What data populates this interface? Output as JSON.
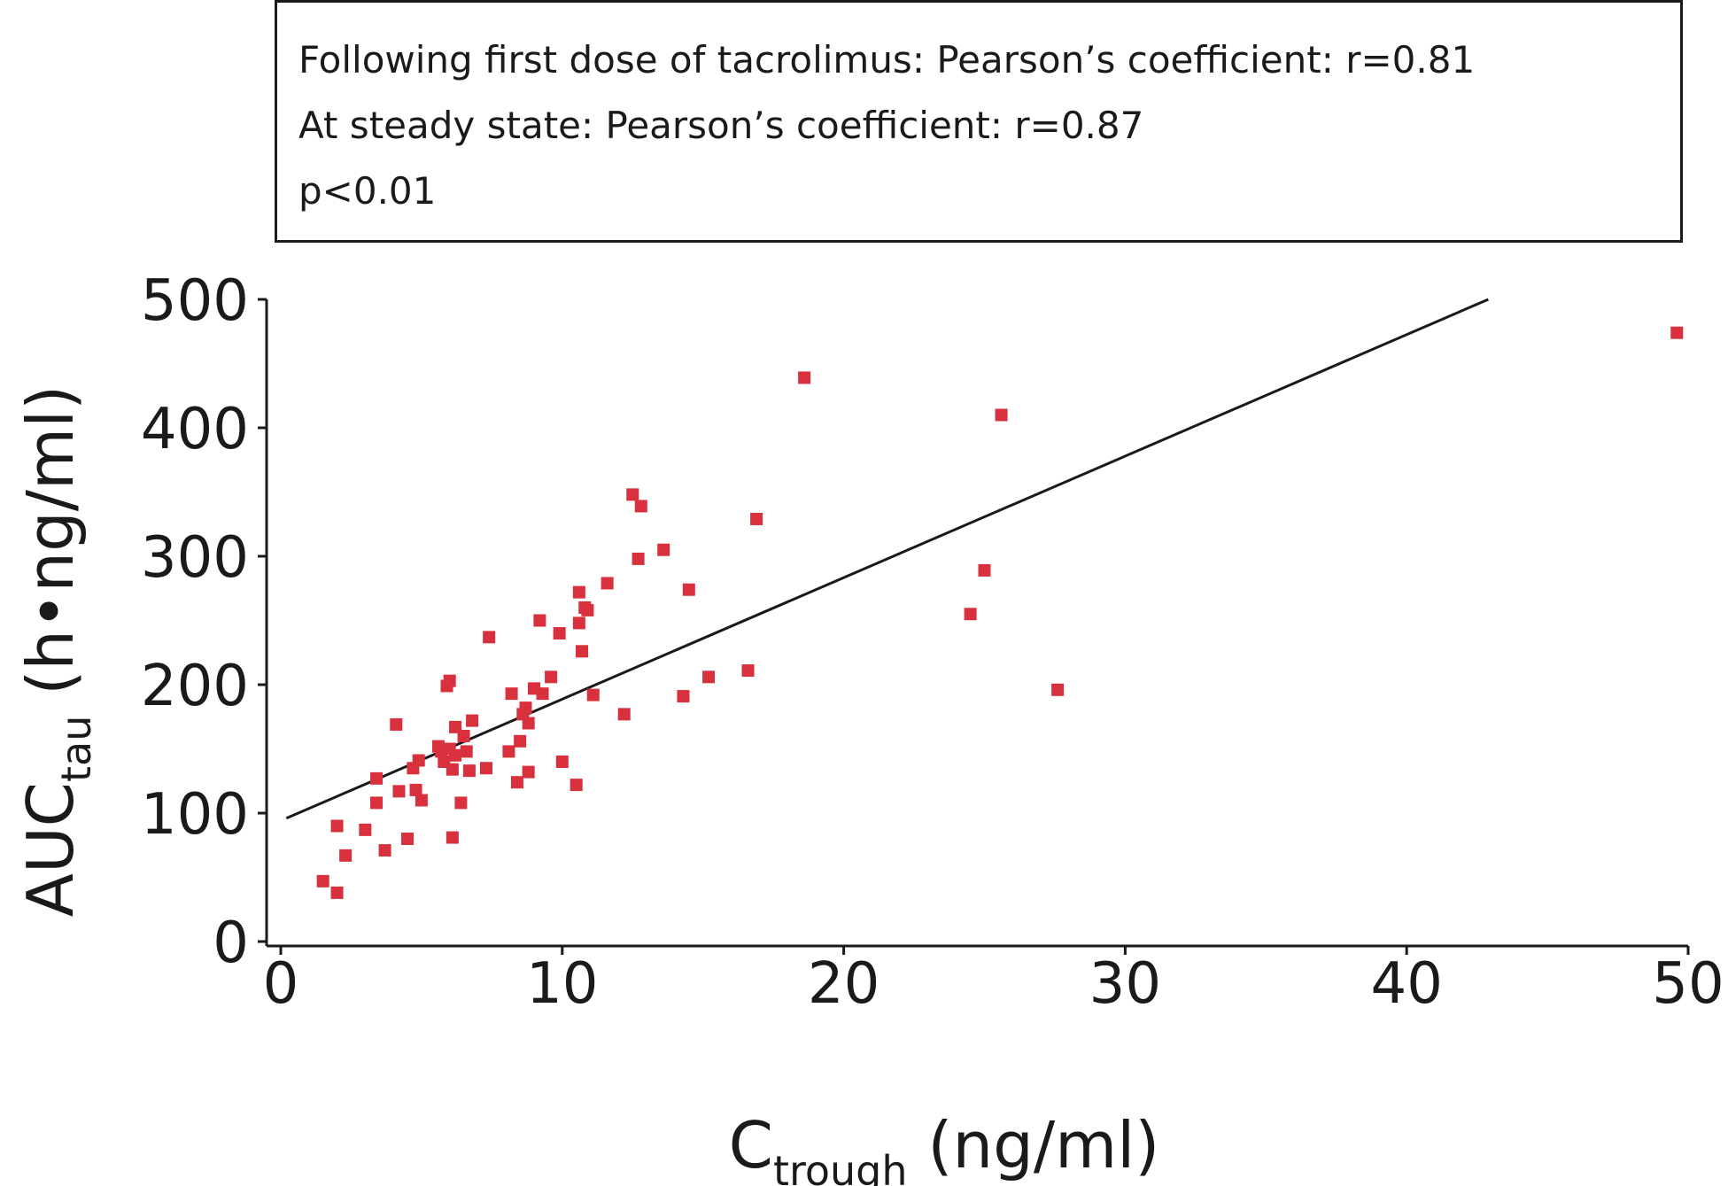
{
  "annotation": {
    "line1": "Following first dose of tacrolimus: Pearson’s coefficient: r=0.81",
    "line2": "At steady state: Pearson’s coefficient: r=0.87",
    "line3": "p<0.01"
  },
  "chart_data": {
    "type": "scatter",
    "title": "",
    "xlabel": {
      "main": "C",
      "sub": "trough",
      "unit": " (ng/ml)"
    },
    "ylabel": {
      "main": "AUC",
      "sub": "tau",
      "unit": " (h•ng/ml)"
    },
    "xlim": [
      0,
      50
    ],
    "ylim": [
      0,
      500
    ],
    "x_ticks": [
      0,
      10,
      20,
      30,
      40,
      50
    ],
    "y_ticks": [
      0,
      100,
      200,
      300,
      400,
      500
    ],
    "grid": false,
    "point_color": "#d9303d",
    "line_color": "#1a1a1a",
    "regression_line": {
      "x": [
        0.2,
        42.9
      ],
      "y": [
        96,
        500
      ]
    },
    "points": [
      {
        "x": 1.5,
        "y": 47
      },
      {
        "x": 2.0,
        "y": 38
      },
      {
        "x": 2.0,
        "y": 90
      },
      {
        "x": 2.3,
        "y": 67
      },
      {
        "x": 3.0,
        "y": 87
      },
      {
        "x": 3.4,
        "y": 108
      },
      {
        "x": 3.4,
        "y": 127
      },
      {
        "x": 3.7,
        "y": 71
      },
      {
        "x": 4.1,
        "y": 169
      },
      {
        "x": 4.2,
        "y": 117
      },
      {
        "x": 4.5,
        "y": 80
      },
      {
        "x": 4.7,
        "y": 135
      },
      {
        "x": 4.8,
        "y": 118
      },
      {
        "x": 4.9,
        "y": 141
      },
      {
        "x": 5.0,
        "y": 110
      },
      {
        "x": 5.6,
        "y": 152
      },
      {
        "x": 5.7,
        "y": 148
      },
      {
        "x": 5.8,
        "y": 140
      },
      {
        "x": 5.9,
        "y": 199
      },
      {
        "x": 6.0,
        "y": 203
      },
      {
        "x": 6.0,
        "y": 150
      },
      {
        "x": 6.1,
        "y": 134
      },
      {
        "x": 6.1,
        "y": 81
      },
      {
        "x": 6.2,
        "y": 167
      },
      {
        "x": 6.2,
        "y": 145
      },
      {
        "x": 6.4,
        "y": 108
      },
      {
        "x": 6.5,
        "y": 160
      },
      {
        "x": 6.6,
        "y": 148
      },
      {
        "x": 6.7,
        "y": 133
      },
      {
        "x": 6.8,
        "y": 172
      },
      {
        "x": 7.3,
        "y": 135
      },
      {
        "x": 7.4,
        "y": 237
      },
      {
        "x": 8.1,
        "y": 148
      },
      {
        "x": 8.2,
        "y": 193
      },
      {
        "x": 8.4,
        "y": 124
      },
      {
        "x": 8.5,
        "y": 156
      },
      {
        "x": 8.6,
        "y": 177
      },
      {
        "x": 8.7,
        "y": 182
      },
      {
        "x": 8.8,
        "y": 170
      },
      {
        "x": 8.8,
        "y": 132
      },
      {
        "x": 9.0,
        "y": 197
      },
      {
        "x": 9.2,
        "y": 250
      },
      {
        "x": 9.3,
        "y": 193
      },
      {
        "x": 9.6,
        "y": 206
      },
      {
        "x": 9.9,
        "y": 240
      },
      {
        "x": 10.0,
        "y": 140
      },
      {
        "x": 10.5,
        "y": 122
      },
      {
        "x": 10.6,
        "y": 248
      },
      {
        "x": 10.6,
        "y": 272
      },
      {
        "x": 10.7,
        "y": 226
      },
      {
        "x": 10.8,
        "y": 260
      },
      {
        "x": 10.9,
        "y": 258
      },
      {
        "x": 11.1,
        "y": 192
      },
      {
        "x": 11.6,
        "y": 279
      },
      {
        "x": 12.2,
        "y": 177
      },
      {
        "x": 12.5,
        "y": 348
      },
      {
        "x": 12.7,
        "y": 298
      },
      {
        "x": 12.8,
        "y": 339
      },
      {
        "x": 13.6,
        "y": 305
      },
      {
        "x": 14.3,
        "y": 191
      },
      {
        "x": 14.5,
        "y": 274
      },
      {
        "x": 15.2,
        "y": 206
      },
      {
        "x": 16.6,
        "y": 211
      },
      {
        "x": 16.9,
        "y": 329
      },
      {
        "x": 18.6,
        "y": 439
      },
      {
        "x": 24.5,
        "y": 255
      },
      {
        "x": 25.0,
        "y": 289
      },
      {
        "x": 25.6,
        "y": 410
      },
      {
        "x": 27.6,
        "y": 196
      },
      {
        "x": 49.6,
        "y": 474
      }
    ]
  }
}
